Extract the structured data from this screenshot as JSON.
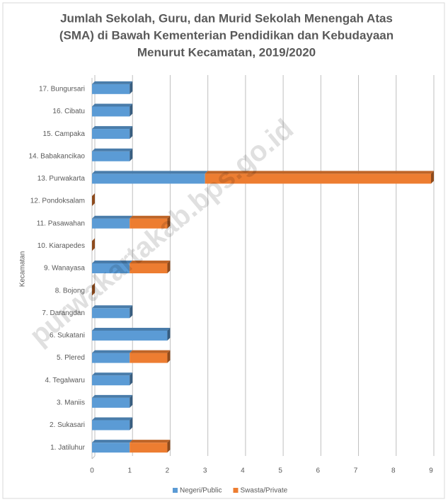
{
  "chart_data": {
    "type": "bar",
    "orientation": "horizontal",
    "stacked": true,
    "title": [
      "Jumlah Sekolah, Guru, dan Murid Sekolah Menengah Atas",
      "(SMA) di Bawah Kementerian Pendidikan dan Kebudayaan",
      "Menurut Kecamatan, 2019/2020"
    ],
    "y_label": "Kecamatan",
    "watermark": "purwakartakab.bps.go.id",
    "categories": [
      "1. Jatiluhur",
      "2. Sukasari",
      "3. Maniis",
      "4. Tegalwaru",
      "5. Plered",
      "6. Sukatani",
      "7. Darangdan",
      "8. Bojong",
      "9. Wanayasa",
      "10. Kiarapedes",
      "11. Pasawahan",
      "12. Pondoksalam",
      "13. Purwakarta",
      "14. Babakancikao",
      "15. Campaka",
      "16. Cibatu",
      "17. Bungursari"
    ],
    "series": [
      {
        "name": "Negeri/Public",
        "color": "#5b9bd5",
        "values": [
          1,
          1,
          1,
          1,
          1,
          2,
          1,
          0,
          1,
          0,
          1,
          0,
          3,
          1,
          1,
          1,
          1
        ]
      },
      {
        "name": "Swasta/Private",
        "color": "#ed7d31",
        "values": [
          1,
          0,
          0,
          0,
          1,
          0,
          0,
          0,
          1,
          0,
          1,
          0,
          6,
          0,
          0,
          0,
          0
        ]
      }
    ],
    "xlim": [
      0,
      9
    ],
    "xticks": [
      0,
      1,
      2,
      3,
      4,
      5,
      6,
      7,
      8,
      9
    ],
    "grid": true,
    "legend": "bottom"
  }
}
